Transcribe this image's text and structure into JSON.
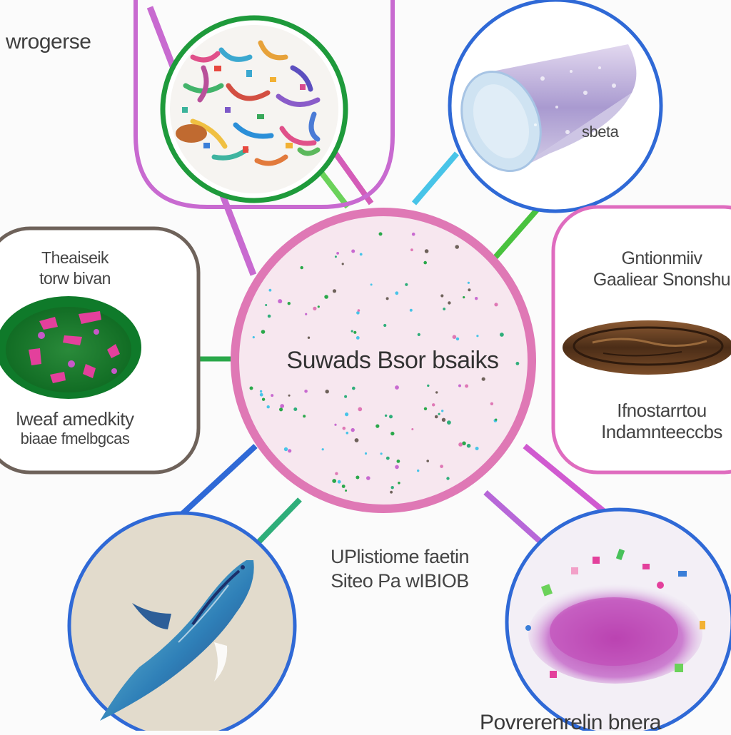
{
  "labels": {
    "top_left": "wrogerse",
    "top_right": "sbeta",
    "left_box": [
      "Theaiseik",
      "torw bivan",
      "lweaf amedkity",
      "biaae fmelbgcas"
    ],
    "center": "Suwads Bsor bsaiks",
    "right_box": [
      "Gntionmiiv",
      "Gaaliear Snonshu",
      "Ifnostarrtou",
      "Indamnteeccbs"
    ],
    "bottom_center": [
      "UPlistiome faetin",
      "Siteo Pa wIBIOB"
    ],
    "bottom_right": "Povrerenrelin bnera"
  },
  "colors": {
    "pink": "#df78b5",
    "magenta": "#c86ad0",
    "green": "#1e9a3b",
    "lime": "#6bd25a",
    "blue": "#2f69d6",
    "cyan": "#48c4e8",
    "gray": "#6e625a",
    "center_fill": "#f7e7ef"
  },
  "icons": {
    "top_left": "plastic-fragments-icon",
    "top_right": "plastic-cylinder-icon",
    "left": "green-dish-icon",
    "right": "sediment-core-icon",
    "bottom_left": "fish-icon",
    "bottom_right": "microplastic-pile-icon"
  }
}
